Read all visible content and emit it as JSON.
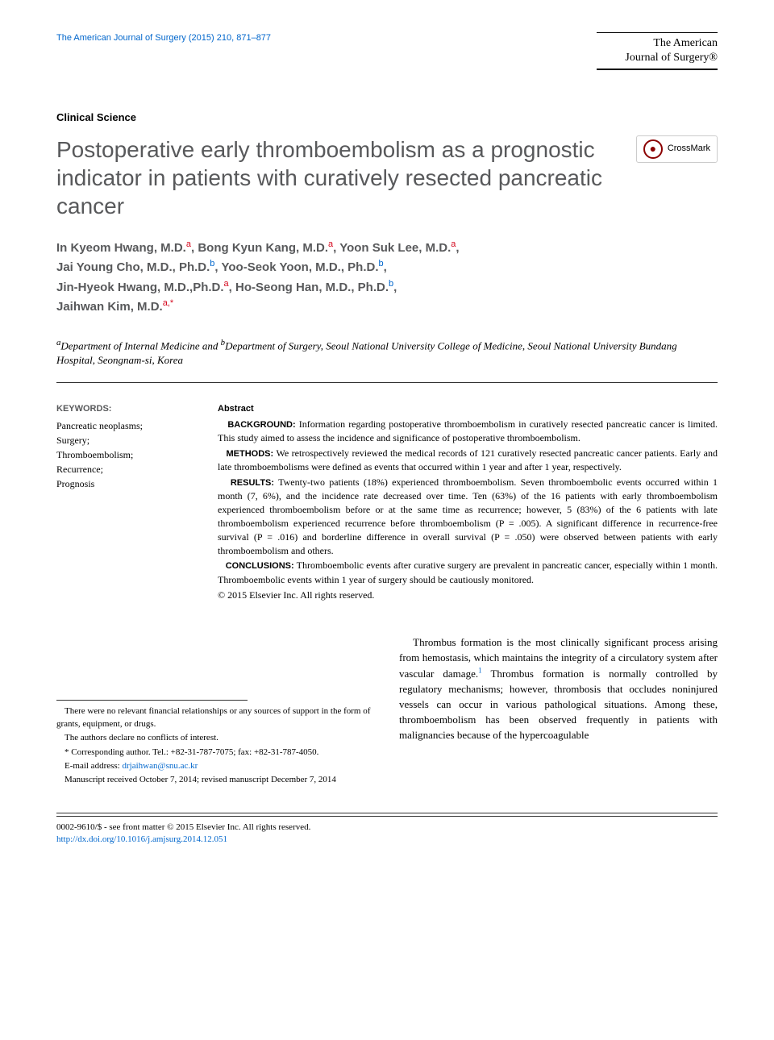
{
  "header": {
    "citation_journal": "The American Journal of Surgery",
    "citation_year": "(2015)",
    "citation_vol": "210,",
    "citation_pages": "871–877",
    "brand_line1": "The American",
    "brand_line2": "Journal of Surgery®"
  },
  "section_label": "Clinical Science",
  "title": "Postoperative early thromboembolism as a prognostic indicator in patients with curatively resected pancreatic cancer",
  "crossmark_label": "CrossMark",
  "authors": [
    {
      "name": "In Kyeom Hwang, M.D.",
      "aff": "a"
    },
    {
      "name": "Bong Kyun Kang, M.D.",
      "aff": "a"
    },
    {
      "name": "Yoon Suk Lee, M.D.",
      "aff": "a"
    },
    {
      "name": "Jai Young Cho, M.D., Ph.D.",
      "aff": "b"
    },
    {
      "name": "Yoo-Seok Yoon, M.D., Ph.D.",
      "aff": "b"
    },
    {
      "name": "Jin-Hyeok Hwang, M.D.,Ph.D.",
      "aff": "a"
    },
    {
      "name": "Ho-Seong Han, M.D., Ph.D.",
      "aff": "b"
    },
    {
      "name": "Jaihwan Kim, M.D.",
      "aff": "a",
      "corr": true
    }
  ],
  "affiliations": {
    "a_label": "a",
    "a_text": "Department of Internal Medicine and ",
    "b_label": "b",
    "b_text": "Department of Surgery, Seoul National University College of Medicine, Seoul National University Bundang Hospital, Seongnam-si, Korea"
  },
  "keywords": {
    "head": "KEYWORDS:",
    "items": "Pancreatic neoplasms;\nSurgery;\nThromboembolism;\nRecurrence;\nPrognosis"
  },
  "abstract": {
    "head": "Abstract",
    "background_label": "BACKGROUND:",
    "background": "Information regarding postoperative thromboembolism in curatively resected pancreatic cancer is limited. This study aimed to assess the incidence and significance of postoperative thromboembolism.",
    "methods_label": "METHODS:",
    "methods": "We retrospectively reviewed the medical records of 121 curatively resected pancreatic cancer patients. Early and late thromboembolisms were defined as events that occurred within 1 year and after 1 year, respectively.",
    "results_label": "RESULTS:",
    "results": "Twenty-two patients (18%) experienced thromboembolism. Seven thromboembolic events occurred within 1 month (7, 6%), and the incidence rate decreased over time. Ten (63%) of the 16 patients with early thromboembolism experienced thromboembolism before or at the same time as recurrence; however, 5 (83%) of the 6 patients with late thromboembolism experienced recurrence before thromboembolism (P = .005). A significant difference in recurrence-free survival (P = .016) and borderline difference in overall survival (P = .050) were observed between patients with early thromboembolism and others.",
    "conclusions_label": "CONCLUSIONS:",
    "conclusions": "Thromboembolic events after curative surgery are prevalent in pancreatic cancer, especially within 1 month. Thromboembolic events within 1 year of surgery should be cautiously monitored.",
    "copyright": "© 2015 Elsevier Inc. All rights reserved."
  },
  "footnotes": {
    "funding": "There were no relevant financial relationships or any sources of support in the form of grants, equipment, or drugs.",
    "conflicts": "The authors declare no conflicts of interest.",
    "corr_label": "* Corresponding author. Tel.: +82-31-787-7075; fax: +82-31-787-4050.",
    "email_label": "E-mail address: ",
    "email": "drjaihwan@snu.ac.kr",
    "manuscript": "Manuscript received October 7, 2014; revised manuscript December 7, 2014"
  },
  "body_para": "Thrombus formation is the most clinically significant process arising from hemostasis, which maintains the integrity of a circulatory system after vascular damage. Thrombus formation is normally controlled by regulatory mechanisms; however, thrombosis that occludes noninjured vessels can occur in various pathological situations. Among these, thromboembolism has been observed frequently in patients with malignancies because of the hypercoagulable",
  "body_ref": "1",
  "footer": {
    "issn": "0002-9610/$ - see front matter © 2015 Elsevier Inc. All rights reserved.",
    "doi": "http://dx.doi.org/10.1016/j.amjsurg.2014.12.051"
  },
  "colors": {
    "citation_link": "#0066cc",
    "aff_a": "#d4091f",
    "aff_b": "#0066cc",
    "title_gray": "#58595b"
  }
}
